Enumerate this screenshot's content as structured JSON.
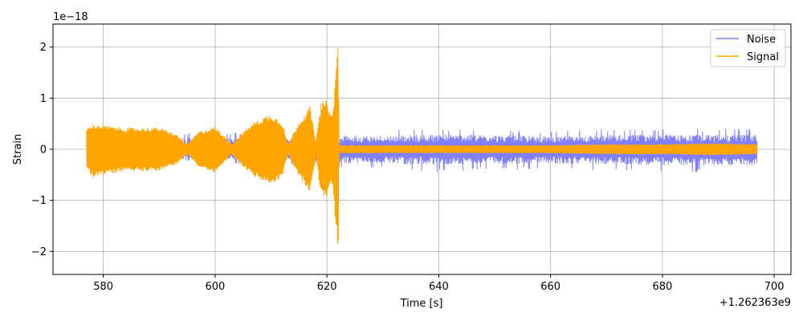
{
  "chart_data": {
    "type": "line",
    "title": "",
    "xlabel": "Time [s]",
    "ylabel": "Strain",
    "x_offset_label": "+1.262363e9",
    "y_scale_label": "1e−18",
    "xlim": [
      571,
      703
    ],
    "ylim": [
      -2.45,
      2.45
    ],
    "x_ticks": [
      580,
      600,
      620,
      640,
      660,
      680,
      700
    ],
    "x_tick_labels": [
      "580",
      "600",
      "620",
      "640",
      "660",
      "680",
      "700"
    ],
    "y_ticks": [
      -2,
      -1,
      0,
      1,
      2
    ],
    "y_tick_labels": [
      "−2",
      "−1",
      "0",
      "1",
      "2"
    ],
    "grid": true,
    "legend_position": "top-right",
    "series": [
      {
        "name": "Noise",
        "color": "#7a7aff",
        "x_range": [
          577,
          697
        ],
        "envelope": {
          "x": [
            577,
            585,
            590,
            595,
            600,
            605,
            610,
            615,
            620,
            622,
            622.2,
            630,
            640,
            650,
            660,
            670,
            680,
            690,
            697
          ],
          "upper": [
            0.3,
            0.32,
            0.3,
            0.33,
            0.34,
            0.32,
            0.32,
            0.3,
            0.3,
            0.3,
            0.38,
            0.38,
            0.42,
            0.4,
            0.36,
            0.4,
            0.42,
            0.4,
            0.42
          ],
          "lower": [
            -0.3,
            -0.32,
            -0.3,
            -0.33,
            -0.32,
            -0.3,
            -0.32,
            -0.3,
            -0.3,
            -0.3,
            -0.4,
            -0.4,
            -0.45,
            -0.4,
            -0.4,
            -0.42,
            -0.45,
            -0.45,
            -0.45
          ]
        }
      },
      {
        "name": "Signal",
        "color": "#ffa500",
        "x_range": [
          577,
          697
        ],
        "envelope": {
          "x": [
            577,
            578,
            584,
            590,
            593,
            595,
            597,
            600,
            603,
            605,
            607,
            610,
            612,
            613,
            615,
            617,
            618,
            619,
            620,
            621,
            621.6,
            622,
            622.2,
            630,
            640,
            650,
            660,
            670,
            680,
            690,
            697
          ],
          "upper": [
            0.4,
            0.5,
            0.42,
            0.43,
            0.3,
            0.1,
            0.35,
            0.45,
            0.1,
            0.35,
            0.55,
            0.7,
            0.55,
            0.1,
            0.55,
            0.85,
            0.15,
            0.95,
            0.95,
            0.65,
            1.6,
            2.22,
            0.08,
            0.08,
            0.08,
            0.08,
            0.08,
            0.1,
            0.1,
            0.12,
            0.1
          ],
          "lower": [
            -0.4,
            -0.55,
            -0.42,
            -0.43,
            -0.3,
            -0.1,
            -0.35,
            -0.45,
            -0.1,
            -0.35,
            -0.55,
            -0.7,
            -0.55,
            -0.1,
            -0.55,
            -0.85,
            -0.15,
            -0.95,
            -0.95,
            -0.65,
            -1.6,
            -2.22,
            -0.08,
            -0.08,
            -0.08,
            -0.08,
            -0.08,
            -0.1,
            -0.1,
            -0.12,
            -0.1
          ]
        }
      }
    ]
  }
}
